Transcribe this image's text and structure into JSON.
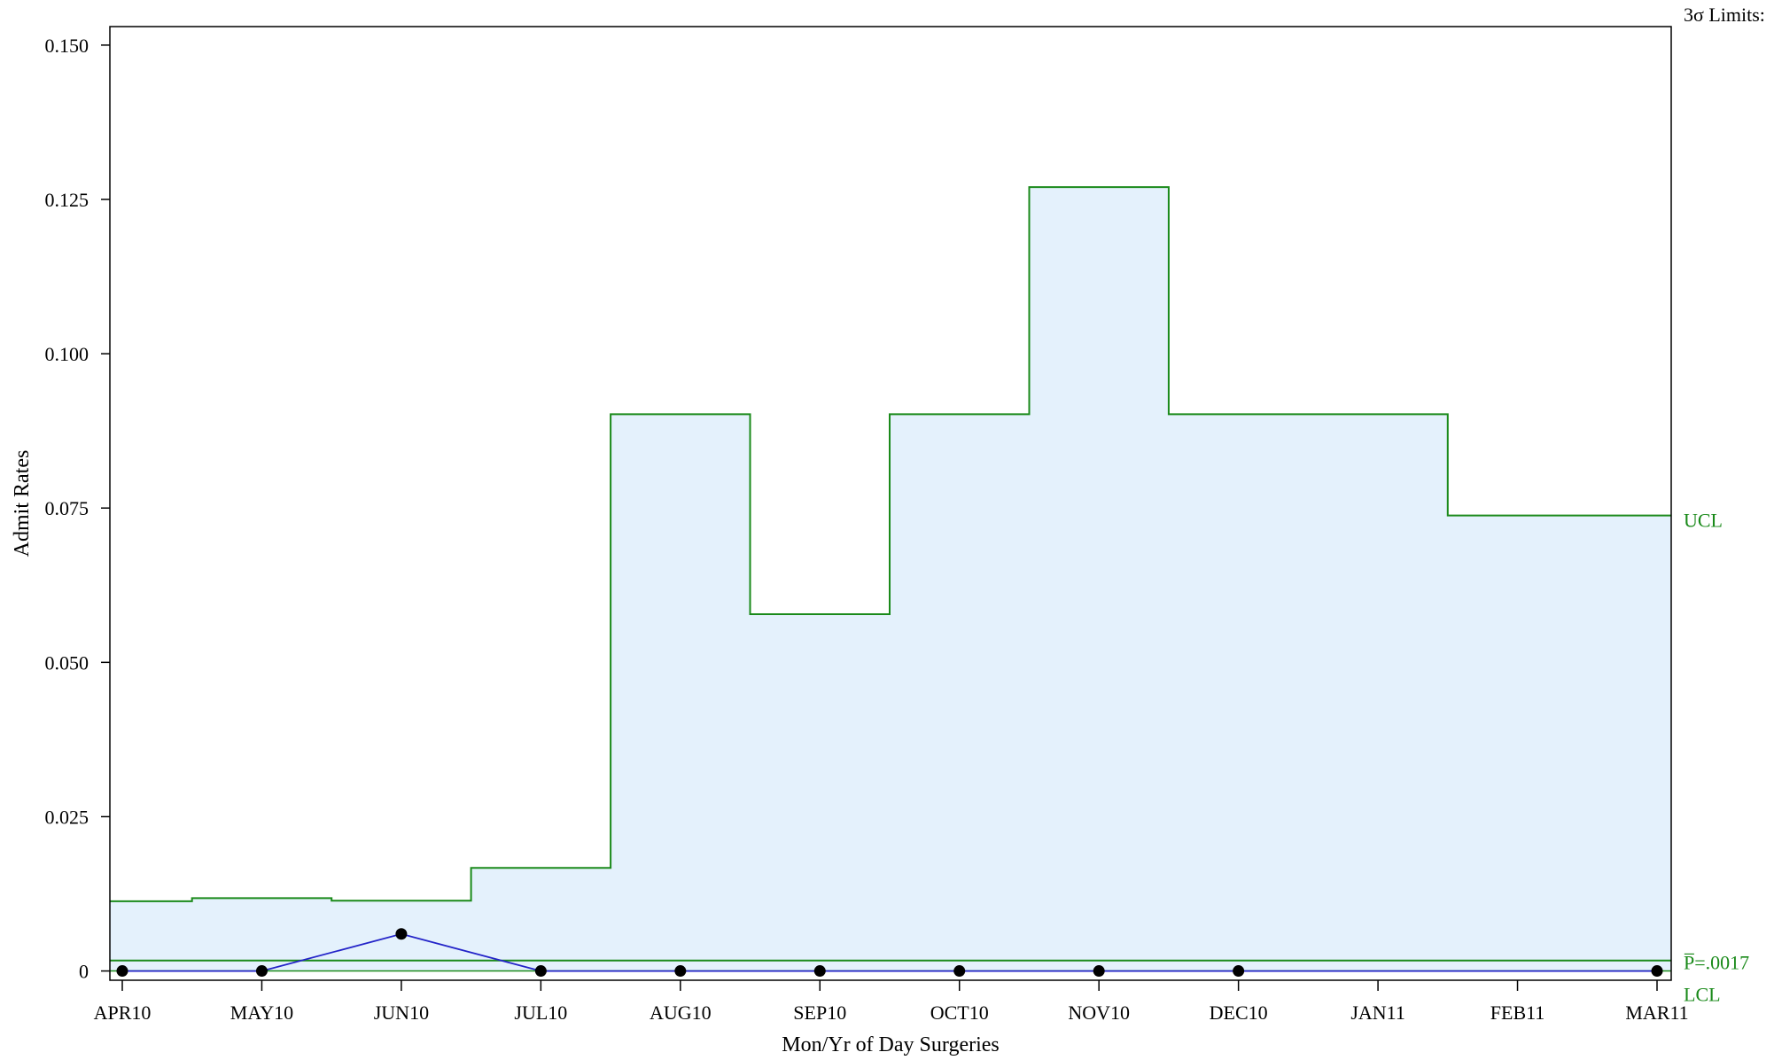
{
  "chart_data": {
    "type": "line",
    "chart_kind": "p-chart with 3-sigma control limits",
    "xlabel": "Mon/Yr of Day Surgeries",
    "ylabel": "Admit Rates",
    "categories": [
      "APR10",
      "MAY10",
      "JUN10",
      "JUL10",
      "AUG10",
      "SEP10",
      "OCT10",
      "NOV10",
      "DEC10",
      "JAN11",
      "FEB11",
      "MAR11"
    ],
    "ylim": [
      -0.0015,
      0.153
    ],
    "yticks": [
      0,
      0.025,
      0.05,
      0.075,
      0.1,
      0.125,
      0.15
    ],
    "ytick_labels": [
      "0",
      "0.025",
      "0.050",
      "0.075",
      "0.100",
      "0.125",
      "0.150"
    ],
    "grid": false,
    "series": [
      {
        "values": [
          0,
          0,
          0.006,
          0,
          0,
          0,
          0,
          0,
          0,
          null,
          null,
          0
        ],
        "color": "#2323c8",
        "marker_color": "#000000"
      }
    ],
    "limits": {
      "header": "3σ Limits:",
      "ucl_label": "UCL",
      "center_label": "P̅=.0017",
      "lcl_label": "LCL",
      "center_value": 0.0017,
      "lcl_value": 0,
      "ucl_values": [
        0.0113,
        0.0118,
        0.0114,
        0.0167,
        0.0902,
        0.0578,
        0.0902,
        0.127,
        0.0902,
        0.0902,
        0.0738,
        0.0738
      ],
      "line_color": "#1a8a1a",
      "fill_color": "#e4f1fc"
    }
  }
}
